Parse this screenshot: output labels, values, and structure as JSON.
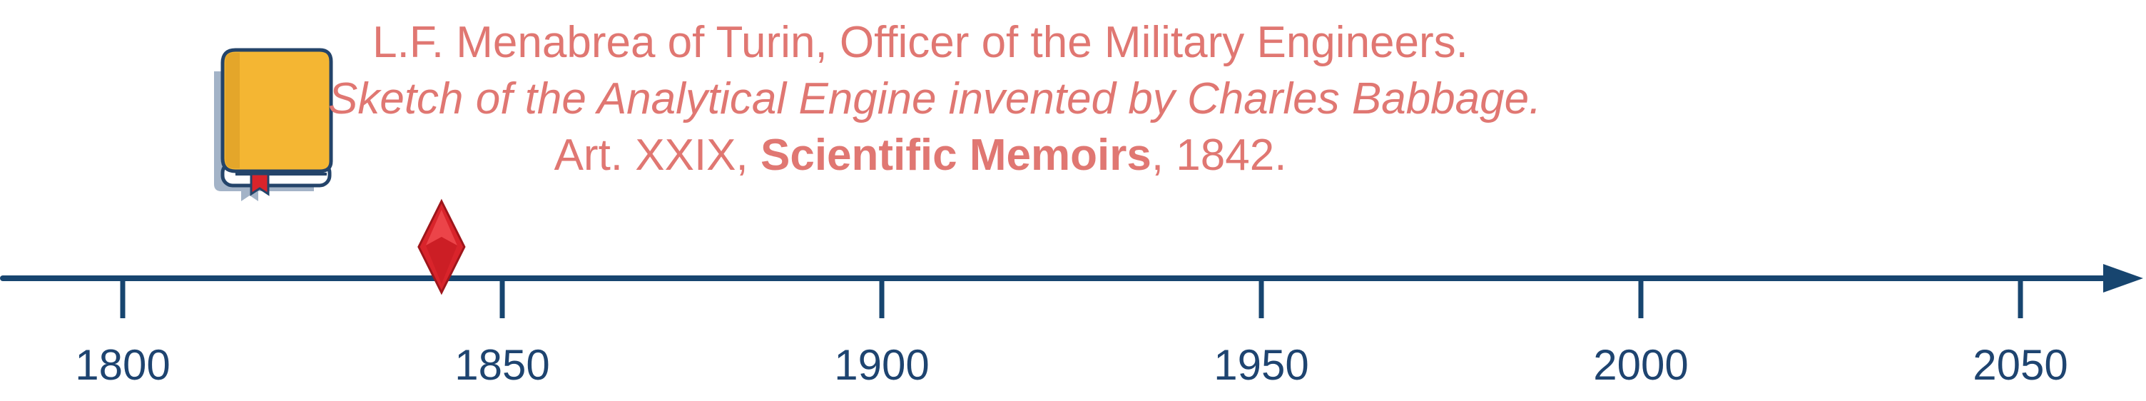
{
  "citation": {
    "line1": "L.F. Menabrea of Turin, Officer of the Military Engineers.",
    "line2": "Sketch of the Analytical Engine invented by Charles Babbage.",
    "line3_prefix": "Art. XXIX, ",
    "line3_bold": "Scientific Memoirs",
    "line3_suffix": ", 1842."
  },
  "timeline": {
    "ticks": [
      "1800",
      "1850",
      "1900",
      "1950",
      "2000",
      "2050"
    ],
    "event_year": 1842,
    "axis_color": "#17456f",
    "marker_color": "#d9242b",
    "text_color": "#e07772"
  },
  "icons": {
    "book": "book-icon",
    "marker": "diamond-marker-icon"
  }
}
